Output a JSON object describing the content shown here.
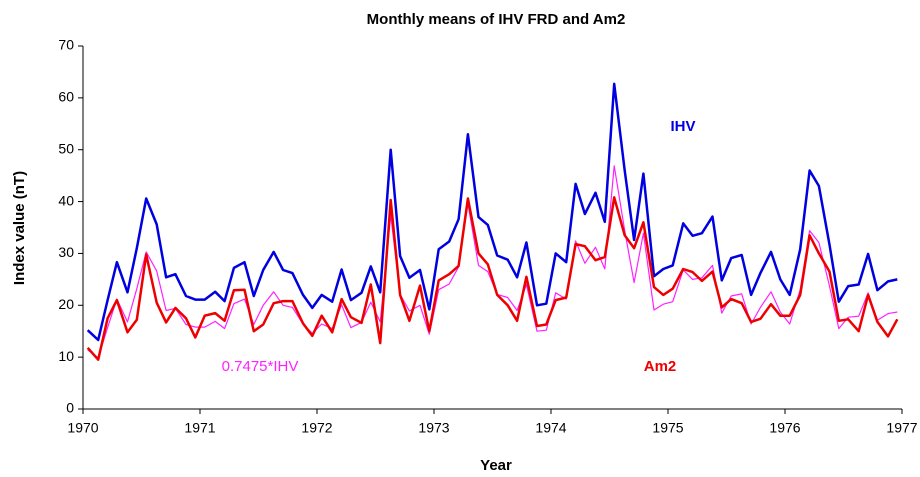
{
  "chart_data": {
    "type": "line",
    "title": "Monthly means of IHV FRD and Am2",
    "x_label": "Year",
    "y_label": "Index value (nT)",
    "x": [
      1970.04,
      1970.13,
      1970.21,
      1970.29,
      1970.38,
      1970.46,
      1970.54,
      1970.63,
      1970.71,
      1970.79,
      1970.88,
      1970.96,
      1971.04,
      1971.13,
      1971.21,
      1971.29,
      1971.38,
      1971.46,
      1971.54,
      1971.63,
      1971.71,
      1971.79,
      1971.88,
      1971.96,
      1972.04,
      1972.13,
      1972.21,
      1972.29,
      1972.38,
      1972.46,
      1972.54,
      1972.63,
      1972.71,
      1972.79,
      1972.88,
      1972.96,
      1973.04,
      1973.13,
      1973.21,
      1973.29,
      1973.38,
      1973.46,
      1973.54,
      1973.63,
      1973.71,
      1973.79,
      1973.88,
      1973.96,
      1974.04,
      1974.13,
      1974.21,
      1974.29,
      1974.38,
      1974.46,
      1974.54,
      1974.63,
      1974.71,
      1974.79,
      1974.88,
      1974.96,
      1975.04,
      1975.13,
      1975.21,
      1975.29,
      1975.38,
      1975.46,
      1975.54,
      1975.63,
      1975.71,
      1975.79,
      1975.88,
      1975.96,
      1976.04,
      1976.13,
      1976.21,
      1976.29,
      1976.38,
      1976.46,
      1976.54,
      1976.63,
      1976.71,
      1976.79,
      1976.88,
      1976.96
    ],
    "series": [
      {
        "name": "IHV",
        "color": "#0000e0",
        "width": 2.5,
        "values": [
          15.2,
          13.3,
          21,
          28.3,
          22.5,
          31,
          40.6,
          35.6,
          25.4,
          26,
          21.8,
          21.1,
          21.1,
          22.6,
          20.8,
          27.2,
          28.3,
          21.8,
          26.8,
          30.3,
          26.8,
          26.2,
          22,
          19.5,
          22,
          20.7,
          26.9,
          21,
          22.4,
          27.5,
          22.5,
          50,
          29.5,
          25.3,
          26.8,
          19.2,
          30.8,
          32.3,
          36.6,
          53,
          37,
          35.5,
          29.6,
          28.8,
          25.4,
          32.1,
          20,
          20.3,
          30,
          28.3,
          43.4,
          37.6,
          41.7,
          36.1,
          62.7,
          46,
          32.6,
          45.4,
          25.6,
          27,
          27.7,
          35.8,
          33.4,
          33.9,
          37.1,
          24.8,
          29.1,
          29.7,
          22,
          26.2,
          30.3,
          25,
          22,
          30.8,
          46,
          43,
          31.7,
          20.7,
          23.7,
          24,
          29.9,
          22.9,
          24.6,
          25
        ]
      },
      {
        "name": "0.7475*IHV",
        "color": "#ff22ff",
        "width": 1.2,
        "values": [
          11.4,
          9.9,
          15.7,
          21.2,
          16.8,
          23.2,
          30.3,
          26.6,
          19.0,
          19.4,
          16.3,
          15.8,
          15.8,
          16.9,
          15.5,
          20.3,
          21.2,
          16.3,
          20.0,
          22.6,
          20.0,
          19.6,
          16.4,
          14.6,
          16.4,
          15.5,
          20.1,
          15.7,
          16.7,
          20.6,
          16.8,
          37.4,
          22.1,
          18.9,
          20.0,
          14.4,
          23.0,
          24.1,
          27.4,
          39.6,
          27.7,
          26.5,
          22.1,
          21.5,
          19.0,
          24.0,
          15.0,
          15.2,
          22.4,
          21.2,
          32.4,
          28.1,
          31.2,
          27.0,
          46.9,
          34.4,
          24.4,
          33.9,
          19.1,
          20.2,
          20.7,
          26.8,
          25.0,
          25.3,
          27.7,
          18.5,
          21.8,
          22.2,
          16.4,
          19.6,
          22.6,
          18.7,
          16.4,
          23.0,
          34.4,
          32.1,
          23.7,
          15.5,
          17.7,
          17.9,
          22.4,
          17.1,
          18.4,
          18.7
        ]
      },
      {
        "name": "Am2",
        "color": "#ee0000",
        "width": 2.5,
        "values": [
          11.8,
          9.5,
          17.5,
          21,
          14.8,
          17.2,
          29.8,
          20.5,
          16.7,
          19.5,
          17.5,
          13.8,
          18,
          18.5,
          17,
          22.9,
          23,
          15,
          16.3,
          20.4,
          20.8,
          20.8,
          16.5,
          14.1,
          18,
          14.8,
          21.2,
          17.7,
          16.6,
          24,
          12.7,
          40.3,
          22,
          17,
          23.8,
          15,
          24.8,
          26,
          27.6,
          40.6,
          30,
          27.9,
          22,
          20,
          17,
          25.5,
          16,
          16.3,
          21,
          21.5,
          31.8,
          31.4,
          28.7,
          29.3,
          40.8,
          33.5,
          31,
          36,
          23.5,
          22,
          23.2,
          27,
          26.4,
          24.7,
          26.5,
          19.6,
          21.2,
          20.4,
          16.8,
          17.4,
          20.2,
          18,
          18,
          22,
          33.5,
          30,
          26.5,
          17,
          17.3,
          15,
          22,
          16.8,
          14,
          17.3
        ]
      }
    ],
    "xlim": [
      1970,
      1977
    ],
    "xticks": [
      1970,
      1971,
      1972,
      1973,
      1974,
      1975,
      1976,
      1977
    ],
    "ylim": [
      0,
      70
    ],
    "yticks": [
      0,
      10,
      20,
      30,
      40,
      50,
      60,
      70
    ]
  }
}
